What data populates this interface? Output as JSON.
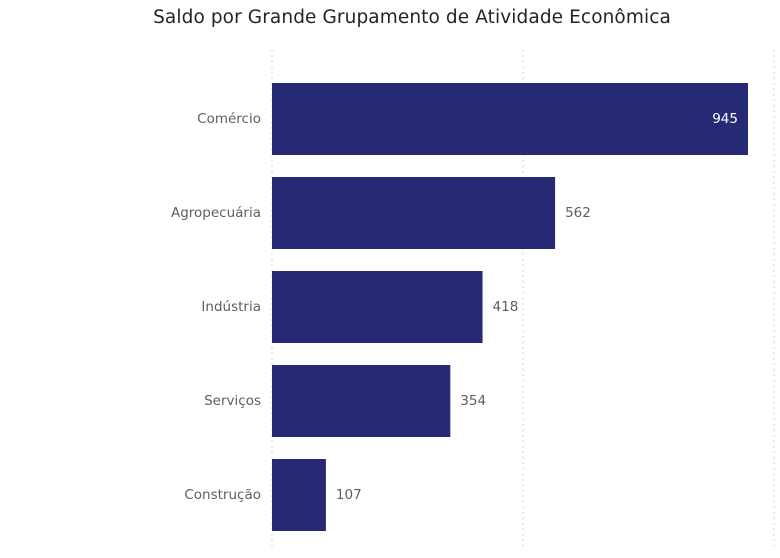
{
  "chart_data": {
    "type": "bar",
    "orientation": "horizontal",
    "title": "Saldo por Grande Grupamento de Atividade Econômica",
    "categories": [
      "Comércio",
      "Agropecuária",
      "Indústria",
      "Serviços",
      "Construção"
    ],
    "values": [
      945,
      562,
      418,
      354,
      107
    ],
    "data_labels": [
      "945",
      "562",
      "418",
      "354",
      "107"
    ],
    "xlim": [
      0,
      945
    ],
    "grid": true,
    "bar_color": "#262A74"
  }
}
